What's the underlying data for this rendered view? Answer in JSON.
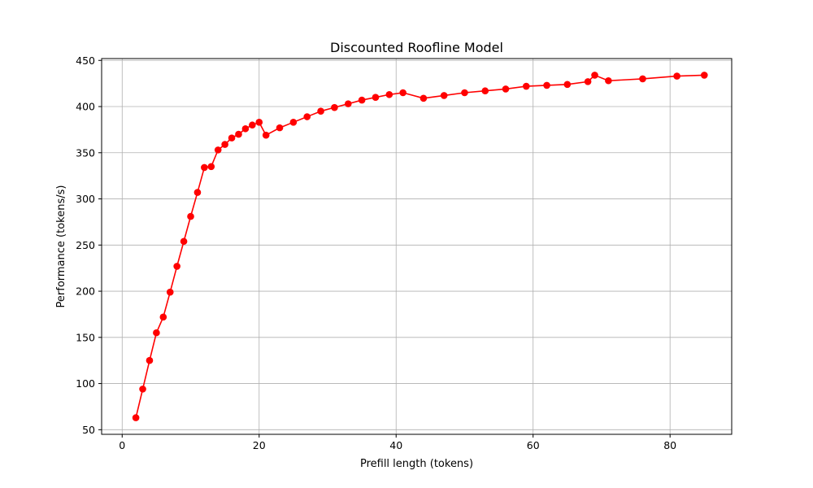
{
  "chart_data": {
    "type": "line",
    "title": "Discounted Roofline Model",
    "xlabel": "Prefill length (tokens)",
    "ylabel": "Performance (tokens/s)",
    "xlim": [
      -3,
      89
    ],
    "ylim": [
      45,
      452
    ],
    "x_ticks": [
      0,
      20,
      40,
      60,
      80
    ],
    "y_ticks": [
      50,
      100,
      150,
      200,
      250,
      300,
      350,
      400,
      450
    ],
    "grid": true,
    "series": [
      {
        "color": "#ff0000",
        "marker": "circle",
        "x": [
          2,
          3,
          4,
          5,
          6,
          7,
          8,
          9,
          10,
          11,
          12,
          13,
          14,
          15,
          16,
          17,
          18,
          19,
          20,
          21,
          23,
          25,
          27,
          29,
          31,
          33,
          35,
          37,
          39,
          41,
          44,
          47,
          50,
          53,
          56,
          59,
          62,
          65,
          68,
          69,
          71,
          76,
          81,
          85
        ],
        "y": [
          63,
          94,
          125,
          155,
          172,
          199,
          227,
          254,
          281,
          307,
          334,
          335,
          353,
          359,
          366,
          370,
          376,
          380,
          383,
          369,
          377,
          383,
          389,
          395,
          399,
          403,
          407,
          410,
          413,
          415,
          409,
          412,
          415,
          417,
          419,
          422,
          423,
          424,
          427,
          434,
          428,
          430,
          433,
          434
        ]
      }
    ]
  }
}
